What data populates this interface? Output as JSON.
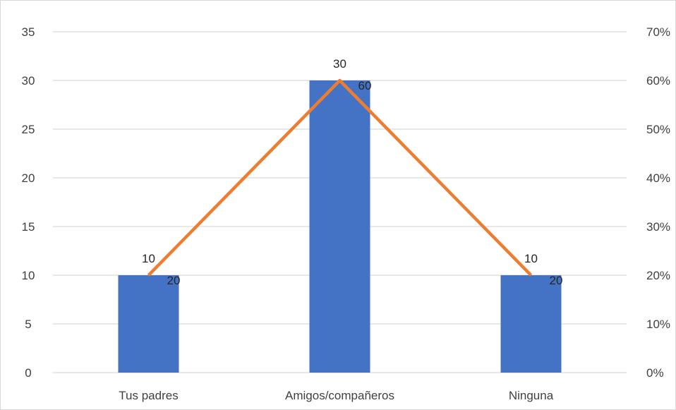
{
  "chart_data": {
    "type": "bar",
    "title": "",
    "xlabel": "",
    "ylabel": "",
    "categories": [
      "Tus padres",
      "Amigos/compañeros",
      "Ninguna"
    ],
    "series": [
      {
        "type": "bar",
        "axis": "left",
        "values": [
          10,
          30,
          10
        ],
        "color": "#4472C4",
        "data_labels": [
          "10",
          "30",
          "10"
        ]
      },
      {
        "type": "line",
        "axis": "right",
        "values": [
          0.2,
          0.6,
          0.2
        ],
        "color": "#ED7D31",
        "data_labels": [
          "20",
          "60",
          "20"
        ]
      }
    ],
    "ylim": [
      0,
      35
    ],
    "y_ticks": [
      "0",
      "5",
      "10",
      "15",
      "20",
      "25",
      "30",
      "35"
    ],
    "y2lim": [
      0,
      0.7
    ],
    "y2_ticks": [
      "0%",
      "10%",
      "20%",
      "30%",
      "40%",
      "50%",
      "60%",
      "70%"
    ],
    "grid": true,
    "legend": "none",
    "gridline_color": "#d9d9d9"
  }
}
